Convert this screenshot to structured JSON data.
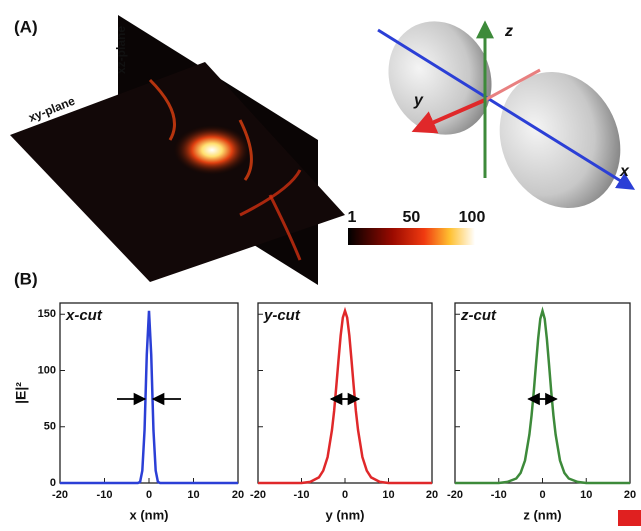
{
  "panel_a": {
    "label": "(A)",
    "xz_plane": "xz-plane",
    "xy_plane": "xy-plane",
    "axes": {
      "x": "x",
      "y": "y",
      "z": "z"
    },
    "colorbar": {
      "lim": [
        1,
        100
      ],
      "ticks": [
        1,
        50,
        100
      ]
    }
  },
  "panel_b": {
    "label": "(B)"
  },
  "chart_data": [
    {
      "type": "line",
      "title": "x-cut",
      "xlabel": "x (nm)",
      "ylabel": "|E|²",
      "x": [
        -20,
        -15,
        -10,
        -8,
        -6,
        -5,
        -4,
        -3,
        -2.5,
        -2,
        -1.5,
        -1,
        -0.5,
        0,
        0.5,
        1,
        1.5,
        2,
        2.5,
        3,
        4,
        5,
        6,
        8,
        10,
        15,
        20
      ],
      "series": [
        {
          "name": "x-cut",
          "color": "#2b3fd6",
          "values": [
            0,
            0,
            0,
            0,
            0,
            0,
            0,
            0,
            0,
            1,
            11,
            47,
            114,
            153,
            114,
            47,
            11,
            1,
            0,
            0,
            0,
            0,
            0,
            0,
            0,
            0,
            0
          ]
        }
      ],
      "xlim": [
        -20,
        20
      ],
      "xticks": [
        -20,
        -10,
        0,
        10,
        20
      ],
      "ylim": [
        0,
        160
      ],
      "yticks": [
        0,
        50,
        100,
        150
      ]
    },
    {
      "type": "line",
      "title": "y-cut",
      "xlabel": "y (nm)",
      "x": [
        -20,
        -15,
        -10,
        -8,
        -6,
        -5,
        -4,
        -3,
        -2.5,
        -2,
        -1.5,
        -1,
        -0.5,
        0,
        0.5,
        1,
        1.5,
        2,
        2.5,
        3,
        4,
        5,
        6,
        8,
        10,
        15,
        20
      ],
      "series": [
        {
          "name": "y-cut",
          "color": "#e0282a",
          "values": [
            0,
            0,
            0,
            1,
            5,
            11,
            23,
            47,
            64,
            86,
            109,
            131,
            147,
            153,
            147,
            131,
            109,
            86,
            64,
            47,
            23,
            11,
            5,
            1,
            0,
            0,
            0
          ]
        }
      ],
      "xlim": [
        -20,
        20
      ],
      "xticks": [
        -20,
        -10,
        0,
        10,
        20
      ],
      "ylim": [
        0,
        160
      ],
      "yticks": [
        0,
        50,
        100,
        150
      ]
    },
    {
      "type": "line",
      "title": "z-cut",
      "xlabel": "z (nm)",
      "x": [
        -20,
        -15,
        -10,
        -8,
        -6,
        -5,
        -4,
        -3,
        -2.5,
        -2,
        -1.5,
        -1,
        -0.5,
        0,
        0.5,
        1,
        1.5,
        2,
        2.5,
        3,
        4,
        5,
        6,
        8,
        10,
        15,
        20
      ],
      "series": [
        {
          "name": "z-cut",
          "color": "#3d8a3a",
          "values": [
            0,
            0,
            0,
            1,
            4,
            9,
            20,
            43,
            60,
            81,
            105,
            128,
            146,
            153,
            146,
            128,
            105,
            81,
            60,
            43,
            20,
            9,
            4,
            1,
            0,
            0,
            0
          ]
        }
      ],
      "xlim": [
        -20,
        20
      ],
      "xticks": [
        -20,
        -10,
        0,
        10,
        20
      ],
      "ylim": [
        0,
        160
      ],
      "yticks": [
        0,
        50,
        100,
        150
      ]
    }
  ]
}
